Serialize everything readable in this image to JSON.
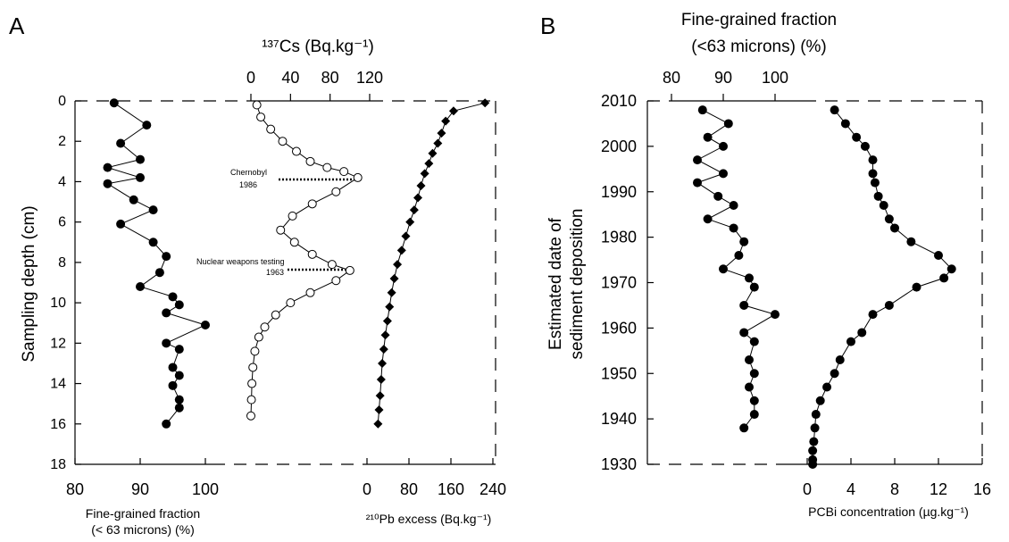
{
  "chart_data": [
    {
      "panel_label": "A",
      "type": "scatter",
      "y_axis": {
        "label": "Sampling depth (cm)",
        "range": [
          0,
          18
        ],
        "ticks": [
          0,
          2,
          4,
          6,
          8,
          10,
          12,
          14,
          16,
          18
        ],
        "inverted": true
      },
      "bottom_axes": [
        {
          "label": "Fine-grained fraction",
          "label_line2": "(< 63 microns) (%)",
          "range": [
            80,
            100
          ],
          "ticks": [
            80,
            90,
            100
          ]
        },
        {
          "label": "²¹⁰Pb excess (Bq.kg⁻¹)",
          "range": [
            0,
            240
          ],
          "ticks": [
            0,
            80,
            160,
            240
          ]
        }
      ],
      "top_axis": {
        "label": "¹³⁷Cs (Bq.kg⁻¹)",
        "range": [
          0,
          120
        ],
        "ticks": [
          0,
          40,
          80,
          120
        ]
      },
      "series": [
        {
          "marker": "filled-circle",
          "axis": "fine-grained",
          "points": [
            [
              86,
              0.1
            ],
            [
              91,
              1.2
            ],
            [
              87,
              2.1
            ],
            [
              90,
              2.9
            ],
            [
              85,
              3.3
            ],
            [
              90,
              3.8
            ],
            [
              85,
              4.1
            ],
            [
              89,
              4.9
            ],
            [
              92,
              5.4
            ],
            [
              87,
              6.1
            ],
            [
              92,
              7.0
            ],
            [
              94,
              7.7
            ],
            [
              93,
              8.5
            ],
            [
              90,
              9.2
            ],
            [
              95,
              9.7
            ],
            [
              96,
              10.1
            ],
            [
              94,
              10.5
            ],
            [
              100,
              11.1
            ],
            [
              94,
              12.0
            ],
            [
              96,
              12.3
            ],
            [
              95,
              13.2
            ],
            [
              96,
              13.6
            ],
            [
              95,
              14.1
            ],
            [
              96,
              14.8
            ],
            [
              96,
              15.2
            ],
            [
              94,
              16.0
            ]
          ]
        },
        {
          "marker": "open-circle",
          "axis": "cs137",
          "points": [
            [
              6,
              0.2
            ],
            [
              10,
              0.8
            ],
            [
              20,
              1.4
            ],
            [
              32,
              2.0
            ],
            [
              46,
              2.5
            ],
            [
              60,
              3.0
            ],
            [
              77,
              3.3
            ],
            [
              94,
              3.5
            ],
            [
              108,
              3.8
            ],
            [
              86,
              4.5
            ],
            [
              62,
              5.1
            ],
            [
              42,
              5.7
            ],
            [
              30,
              6.4
            ],
            [
              44,
              7.0
            ],
            [
              62,
              7.6
            ],
            [
              82,
              8.1
            ],
            [
              100,
              8.4
            ],
            [
              86,
              8.9
            ],
            [
              60,
              9.5
            ],
            [
              40,
              10.0
            ],
            [
              25,
              10.6
            ],
            [
              14,
              11.2
            ],
            [
              8,
              11.7
            ],
            [
              4,
              12.4
            ],
            [
              2,
              13.2
            ],
            [
              1,
              14.0
            ],
            [
              0.5,
              14.8
            ],
            [
              0,
              15.6
            ]
          ]
        },
        {
          "marker": "filled-diamond",
          "axis": "pb210",
          "points": [
            [
              225,
              0.1
            ],
            [
              165,
              0.5
            ],
            [
              150,
              1.0
            ],
            [
              142,
              1.6
            ],
            [
              135,
              2.1
            ],
            [
              125,
              2.6
            ],
            [
              118,
              3.1
            ],
            [
              110,
              3.6
            ],
            [
              103,
              4.2
            ],
            [
              97,
              4.8
            ],
            [
              90,
              5.4
            ],
            [
              82,
              6.0
            ],
            [
              74,
              6.7
            ],
            [
              66,
              7.4
            ],
            [
              58,
              8.1
            ],
            [
              52,
              8.8
            ],
            [
              47,
              9.5
            ],
            [
              43,
              10.2
            ],
            [
              39,
              10.9
            ],
            [
              35,
              11.6
            ],
            [
              32,
              12.3
            ],
            [
              29,
              13.0
            ],
            [
              27,
              13.8
            ],
            [
              25,
              14.6
            ],
            [
              23,
              15.3
            ],
            [
              21,
              16.0
            ]
          ]
        }
      ],
      "annotations": [
        {
          "text": "Chernobyl",
          "text2": "1986",
          "depth": 3.9
        },
        {
          "text": "Nuclear weapons testing",
          "text2": "1963",
          "depth": 8.3
        }
      ]
    },
    {
      "panel_label": "B",
      "type": "scatter",
      "y_axis": {
        "label": "Estimated date of",
        "label_line2": "sediment deposition",
        "range": [
          1930,
          2010
        ],
        "ticks": [
          2010,
          2000,
          1990,
          1980,
          1970,
          1960,
          1950,
          1940,
          1930
        ]
      },
      "top_axis": {
        "label": "Fine-grained fraction",
        "label_line2": "(<63 microns) (%)",
        "range": [
          80,
          100
        ],
        "ticks": [
          80,
          90,
          100
        ]
      },
      "bottom_axis": {
        "label": "PCBi concentration (µg.kg⁻¹)",
        "range": [
          -4,
          16
        ],
        "ticks": [
          0,
          4,
          8,
          12,
          16
        ]
      },
      "series": [
        {
          "marker": "filled-circle",
          "axis": "fine-grained",
          "points": [
            [
              86,
              2008
            ],
            [
              91,
              2005
            ],
            [
              87,
              2002
            ],
            [
              90,
              2000
            ],
            [
              85,
              1997
            ],
            [
              90,
              1994
            ],
            [
              85,
              1992
            ],
            [
              89,
              1989
            ],
            [
              92,
              1987
            ],
            [
              87,
              1984
            ],
            [
              92,
              1982
            ],
            [
              94,
              1979
            ],
            [
              93,
              1976
            ],
            [
              90,
              1973
            ],
            [
              95,
              1971
            ],
            [
              96,
              1969
            ],
            [
              94,
              1965
            ],
            [
              100,
              1963
            ],
            [
              94,
              1959
            ],
            [
              96,
              1957
            ],
            [
              95,
              1953
            ],
            [
              96,
              1950
            ],
            [
              95,
              1947
            ],
            [
              96,
              1944
            ],
            [
              96,
              1941
            ],
            [
              94,
              1938
            ]
          ]
        },
        {
          "marker": "filled-circle",
          "axis": "pcb",
          "points": [
            [
              2.5,
              2008
            ],
            [
              3.5,
              2005
            ],
            [
              4.5,
              2002
            ],
            [
              5.3,
              2000
            ],
            [
              6.0,
              1997
            ],
            [
              6.0,
              1994
            ],
            [
              6.2,
              1992
            ],
            [
              6.5,
              1989
            ],
            [
              7.0,
              1987
            ],
            [
              7.5,
              1984
            ],
            [
              8.0,
              1982
            ],
            [
              9.5,
              1979
            ],
            [
              12.0,
              1976
            ],
            [
              13.2,
              1973
            ],
            [
              12.5,
              1971
            ],
            [
              10.0,
              1969
            ],
            [
              7.5,
              1965
            ],
            [
              6.0,
              1963
            ],
            [
              5.0,
              1959
            ],
            [
              4.0,
              1957
            ],
            [
              3.0,
              1953
            ],
            [
              2.5,
              1950
            ],
            [
              1.8,
              1947
            ],
            [
              1.2,
              1944
            ],
            [
              0.8,
              1941
            ],
            [
              0.7,
              1938
            ],
            [
              0.6,
              1935
            ],
            [
              0.5,
              1933
            ],
            [
              0.5,
              1931
            ],
            [
              0.5,
              1930
            ]
          ]
        }
      ]
    }
  ]
}
